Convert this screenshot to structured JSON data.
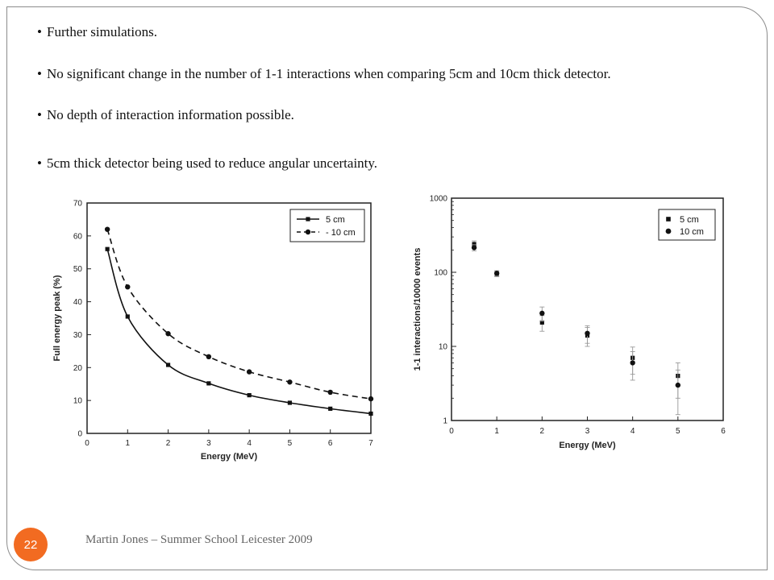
{
  "slide": {
    "bullets": [
      "Further simulations.",
      "No significant change in the number of 1-1 interactions when comparing 5cm and 10cm thick detector.",
      "No depth of interaction information possible.",
      "5cm thick detector being used to reduce angular uncertainty."
    ],
    "bullet_glyph": "•",
    "page_number": "22",
    "footer": "Martin Jones – Summer School Leicester 2009",
    "accent_color": "#f26b21"
  },
  "chart_data": [
    {
      "type": "line",
      "xlabel": "Energy (MeV)",
      "ylabel": "Full energy peak (%)",
      "xlim": [
        0,
        7
      ],
      "ylim": [
        0,
        70
      ],
      "xticks": [
        0,
        1,
        2,
        3,
        4,
        5,
        6,
        7
      ],
      "yticks": [
        0,
        10,
        20,
        30,
        40,
        50,
        60,
        70
      ],
      "legend_position": "top-right",
      "grid": false,
      "x": [
        0.5,
        1,
        2,
        3,
        4,
        5,
        6,
        7
      ],
      "series": [
        {
          "name": "5 cm",
          "values": [
            56,
            35.5,
            20.8,
            15.2,
            11.6,
            9.3,
            7.5,
            6.0
          ],
          "marker": "square",
          "line": "solid"
        },
        {
          "name": "10 cm",
          "values": [
            62,
            44.5,
            30.3,
            23.3,
            18.7,
            15.6,
            12.5,
            10.5
          ],
          "marker": "circle",
          "line": "dashed"
        }
      ]
    },
    {
      "type": "scatter",
      "xlabel": "Energy (MeV)",
      "ylabel": "1-1 interactions/10000 events",
      "xlim": [
        0,
        6
      ],
      "ylim": [
        1,
        1000
      ],
      "yscale": "log",
      "xticks": [
        0,
        1,
        2,
        3,
        4,
        5,
        6
      ],
      "yticks": [
        1,
        10,
        100,
        1000
      ],
      "legend_position": "top-right",
      "grid": false,
      "x": [
        0.5,
        1,
        2,
        3,
        4,
        5
      ],
      "series": [
        {
          "name": "5 cm",
          "values": [
            240,
            95,
            21,
            14,
            7,
            4
          ],
          "errors": [
            25,
            8,
            5,
            4,
            2.8,
            2
          ],
          "marker": "square"
        },
        {
          "name": "10 cm",
          "values": [
            215,
            97,
            28,
            15,
            6,
            3
          ],
          "errors": [
            20,
            8,
            6,
            4,
            2.5,
            1.8
          ],
          "marker": "circle"
        }
      ]
    }
  ]
}
